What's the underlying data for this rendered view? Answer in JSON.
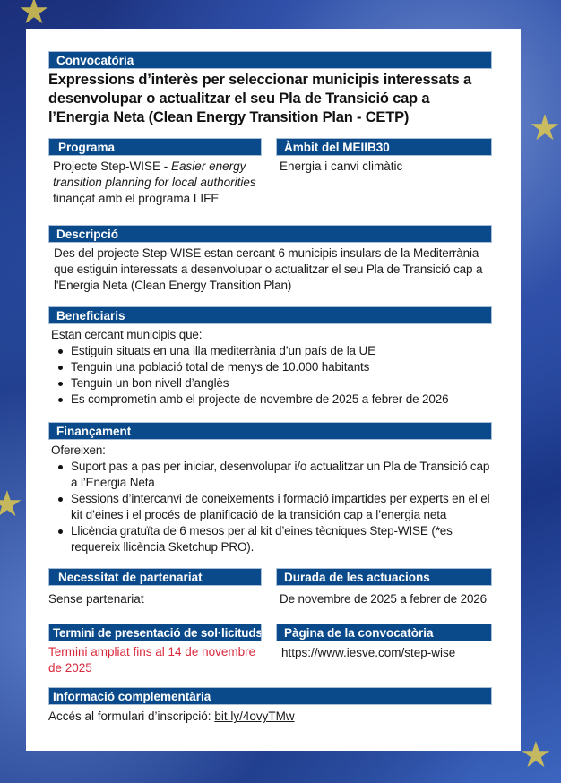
{
  "convocatoria": {
    "label": "Convocatòria",
    "title": "Expressions d’interès per seleccionar municipis interessats a desenvolupar o actualitzar el seu Pla de Transició cap a l’Energia Neta (Clean Energy Transition Plan - CETP)"
  },
  "programa": {
    "label": "Programa",
    "text_prefix": "Projecte Step-WISE - ",
    "text_italic": "Easier energy transition planning for local authorities",
    "text_suffix": " finançat amb el programa LIFE"
  },
  "ambit": {
    "label": "Àmbit del MEIIB30",
    "text": "Energia i canvi climàtic"
  },
  "descripcio": {
    "label": "Descripció",
    "text": "Des del projecte Step-WISE estan cercant 6 municipis insulars de la Mediterrània que estiguin interessats a desenvolupar o actualitzar el seu Pla de Transició cap a l'Energia Neta (Clean Energy Transition Plan)"
  },
  "beneficiaris": {
    "label": "Beneficiaris",
    "intro": "Estan cercant municipis que:",
    "items": [
      "Estiguin situats en una illa mediterrània d’un país de la UE",
      "Tenguin una població total de menys de 10.000 habitants",
      "Tenguin un bon nivell d’anglès",
      "Es comprometin amb el projecte de novembre de 2025 a febrer de 2026"
    ]
  },
  "financament": {
    "label": "Finançament",
    "intro": "Ofereixen:",
    "items": [
      "Suport pas a pas per iniciar, desenvolupar i/o actualitzar un Pla de Transició cap a l’Energia Neta",
      "Sessions d’intercanvi de coneixements i formació impartides per experts en el el kit d’eines i el procés de planificació de la transición cap a l’energia neta",
      "Llicència gratuïta de 6 mesos per al kit d’eines tècniques Step-WISE (*es requereix llicència Sketchup PRO)."
    ]
  },
  "partenariat": {
    "label": "Necessitat de partenariat",
    "text": "Sense partenariat"
  },
  "durada": {
    "label": "Durada de les actuacions",
    "text": "De novembre de 2025 a febrer de 2026"
  },
  "termini": {
    "label": "Termini de presentació de sol·licituds",
    "text": "Termini ampliat fins al 14 de novembre de 2025"
  },
  "pagina": {
    "label": "Pàgina de la convocatòria",
    "text": "https://www.iesve.com/step-wise"
  },
  "informacio": {
    "label": "Informació complementària",
    "text": "Accés al formulari d’inscripció: ",
    "link": "bit.ly/4ovyTMw"
  },
  "colors": {
    "header_bar": "#0a4a8a",
    "deadline": "#d8283c",
    "background": "#2d56b0"
  }
}
